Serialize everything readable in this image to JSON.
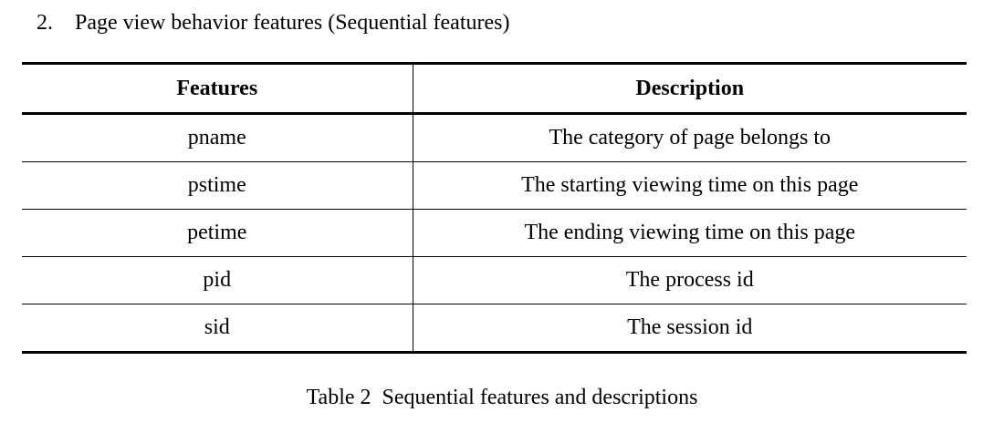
{
  "heading": {
    "number": "2.",
    "text": "Page view behavior features (Sequential features)"
  },
  "table": {
    "headers": [
      "Features",
      "Description"
    ],
    "rows": [
      [
        "pname",
        "The category of page belongs to"
      ],
      [
        "pstime",
        "The starting viewing time on this page"
      ],
      [
        "petime",
        "The ending viewing time on this page"
      ],
      [
        "pid",
        "The process id"
      ],
      [
        "sid",
        "The session id"
      ]
    ]
  },
  "caption": "Table 2  Sequential features and descriptions"
}
